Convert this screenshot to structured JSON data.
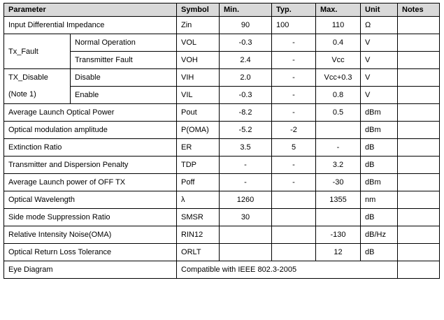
{
  "table": {
    "headers": {
      "parameter": "Parameter",
      "symbol": "Symbol",
      "min": "Min.",
      "typ": "Typ.",
      "max": "Max.",
      "unit": "Unit",
      "notes": "Notes"
    },
    "rows": [
      {
        "parameter": "Input Differential Impedance",
        "symbol": "Zin",
        "min": "90",
        "typ": "100",
        "max": "110",
        "unit": "Ω",
        "notes": ""
      },
      {
        "group": "Tx_Fault",
        "condition": "Normal Operation",
        "symbol": "VOL",
        "min": "-0.3",
        "typ": "-",
        "max": "0.4",
        "unit": "V",
        "notes": ""
      },
      {
        "condition": "Transmitter Fault",
        "symbol": "VOH",
        "min": "2.4",
        "typ": "-",
        "max": "Vcc",
        "unit": "V",
        "notes": ""
      },
      {
        "group_line1": "TX_Disable",
        "condition": "Disable",
        "symbol": "VIH",
        "min": "2.0",
        "typ": "-",
        "max": "Vcc+0.3",
        "unit": "V",
        "notes": ""
      },
      {
        "group_line2": "(Note 1)",
        "condition": "Enable",
        "symbol": "VIL",
        "min": "-0.3",
        "typ": "-",
        "max": "0.8",
        "unit": "V",
        "notes": ""
      },
      {
        "parameter": "Average Launch Optical Power",
        "symbol": "Pout",
        "min": "-8.2",
        "typ": "-",
        "max": "0.5",
        "unit": "dBm",
        "notes": ""
      },
      {
        "parameter": "Optical modulation amplitude",
        "symbol": "P(OMA)",
        "min": "-5.2",
        "typ": "-2",
        "max": "",
        "unit": "dBm",
        "notes": ""
      },
      {
        "parameter": "Extinction Ratio",
        "symbol": "ER",
        "min": "3.5",
        "typ": "5",
        "max": "-",
        "unit": "dB",
        "notes": ""
      },
      {
        "parameter": "Transmitter and Dispersion Penalty",
        "symbol": "TDP",
        "min": "-",
        "typ": "-",
        "max": "3.2",
        "unit": "dB",
        "notes": ""
      },
      {
        "parameter": "Average Launch power of OFF TX",
        "symbol": "Poff",
        "min": "-",
        "typ": "-",
        "max": "-30",
        "unit": "dBm",
        "notes": ""
      },
      {
        "parameter": "Optical Wavelength",
        "symbol": "λ",
        "min": "1260",
        "typ": "",
        "max": "1355",
        "unit": "nm",
        "notes": ""
      },
      {
        "parameter": "Side mode Suppression Ratio",
        "symbol": "SMSR",
        "min": "30",
        "typ": "",
        "max": "",
        "unit": "dB",
        "notes": ""
      },
      {
        "parameter": "Relative Intensity Noise(OMA)",
        "symbol": "RIN12",
        "min": "",
        "typ": "",
        "max": "-130",
        "unit": "dB/Hz",
        "notes": ""
      },
      {
        "parameter": "Optical Return Loss Tolerance",
        "symbol": "ORLT",
        "min": "",
        "typ": "",
        "max": "12",
        "unit": "dB",
        "notes": ""
      },
      {
        "parameter": "Eye Diagram",
        "merged_value": "Compatible with IEEE 802.3-2005",
        "notes": ""
      }
    ]
  }
}
